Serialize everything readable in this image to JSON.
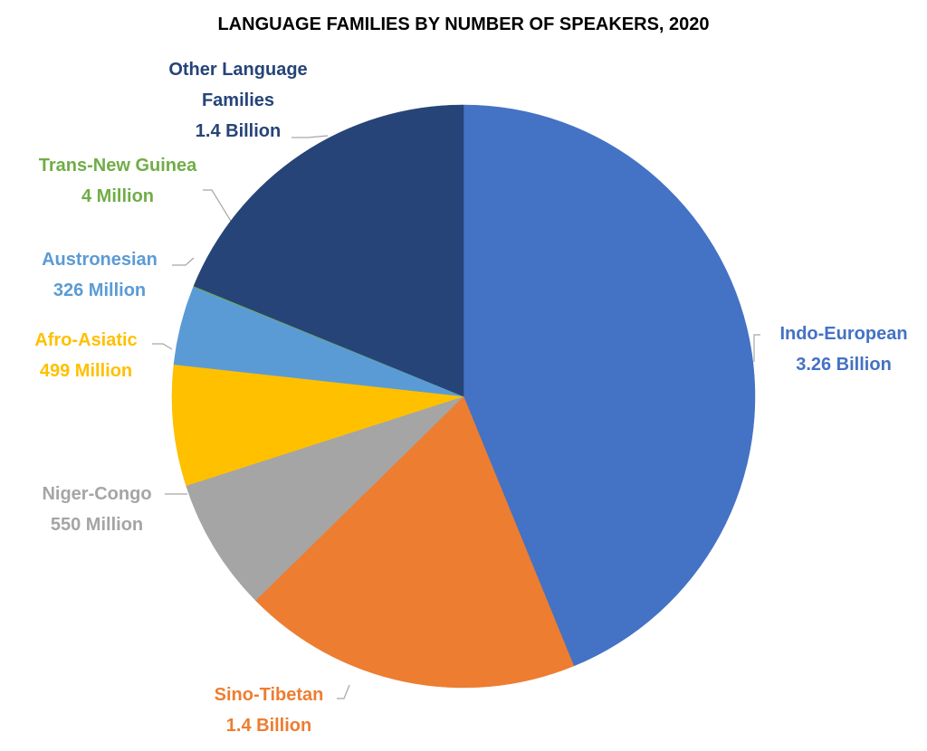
{
  "chart_data": {
    "type": "pie",
    "title": "LANGUAGE FAMILIES BY NUMBER OF SPEAKERS, 2020",
    "categories": [
      "Indo-European",
      "Sino-Tibetan",
      "Niger-Congo",
      "Afro-Asiatic",
      "Austronesian",
      "Trans-New Guinea",
      "Other Language Families"
    ],
    "values": [
      3260,
      1400,
      550,
      499,
      326,
      4,
      1400
    ],
    "value_labels": [
      "3.26 Billion",
      "1.4 Billion",
      "550 Million",
      "499 Million",
      "326 Million",
      "4 Million",
      "1.4 Billion"
    ],
    "colors": [
      "#4472c4",
      "#ed7d31",
      "#a5a5a5",
      "#ffc000",
      "#5b9bd5",
      "#70ad47",
      "#264478"
    ]
  }
}
